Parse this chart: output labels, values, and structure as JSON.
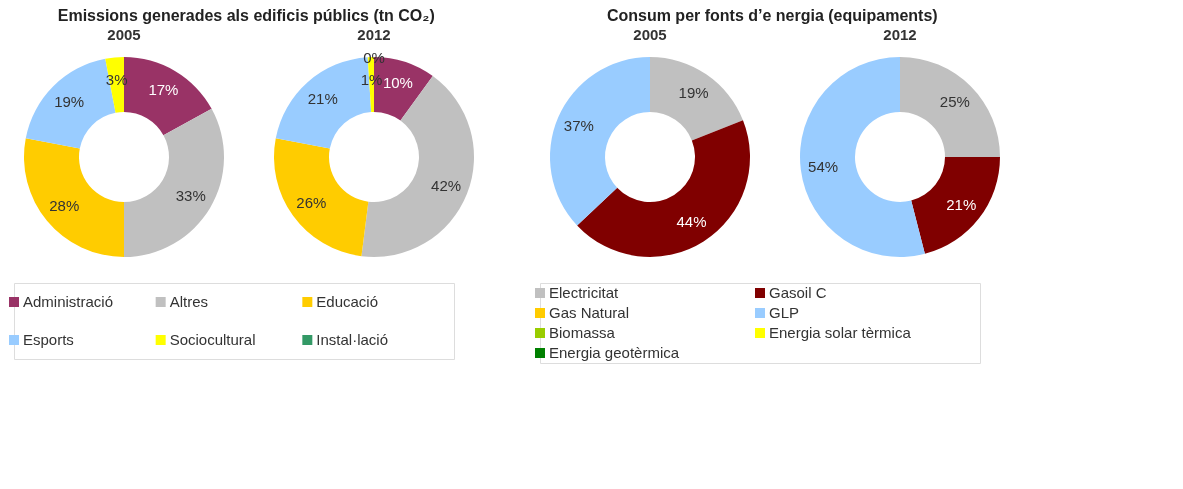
{
  "chart_data": [
    {
      "type": "donut",
      "title": "Emissions generades als edificis públics (tn CO₂)",
      "legend": "bottom",
      "categories": [
        "Administració",
        "Altres",
        "Educació",
        "Esports",
        "Sociocultural",
        "Instal·lació"
      ],
      "colors": [
        "#993366",
        "#c0c0c0",
        "#ffcc00",
        "#99ccff",
        "#ffff00",
        "#339966"
      ],
      "series": [
        {
          "name": "2005",
          "values": [
            17,
            33,
            28,
            19,
            3,
            0
          ],
          "value_labels": [
            "17%",
            "33%",
            "28%",
            "19%",
            "3%",
            null
          ]
        },
        {
          "name": "2012",
          "values": [
            10,
            42,
            26,
            21,
            1,
            0
          ],
          "value_labels": [
            "10%",
            "42%",
            "26%",
            "21%",
            "1%",
            "0%"
          ]
        }
      ]
    },
    {
      "type": "donut",
      "title": "Consum per fonts d’e nergia (equipaments)",
      "legend": "bottom",
      "categories": [
        "Electricitat",
        "Gasoil C",
        "Gas Natural",
        "GLP",
        "Biomassa",
        "Energia solar tèrmica",
        "Energia geotèrmica"
      ],
      "colors": [
        "#c0c0c0",
        "#800000",
        "#ffcc00",
        "#99ccff",
        "#99cc00",
        "#ffff00",
        "#008000"
      ],
      "series": [
        {
          "name": "2005",
          "values": [
            19,
            44,
            0,
            37,
            0,
            0,
            0
          ],
          "value_labels": [
            "19%",
            "44%",
            null,
            "37%",
            null,
            null,
            null
          ]
        },
        {
          "name": "2012",
          "values": [
            25,
            21,
            0,
            54,
            0,
            0,
            0
          ],
          "value_labels": [
            "25%",
            "21%",
            null,
            "54%",
            null,
            null,
            null
          ]
        }
      ]
    }
  ]
}
